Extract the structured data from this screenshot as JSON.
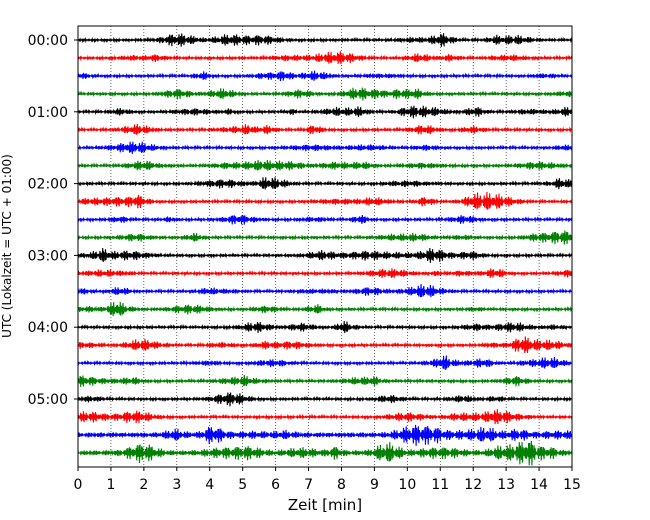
{
  "chart_data": {
    "type": "line",
    "subtype": "helicorder",
    "xlabel": "Zeit  [min]",
    "ylabel": "UTC (Lokalzeit = UTC + 01:00)",
    "xlim": [
      0,
      15
    ],
    "x_ticks": [
      0,
      1,
      2,
      3,
      4,
      5,
      6,
      7,
      8,
      9,
      10,
      11,
      12,
      13,
      14,
      15
    ],
    "x_tick_labels": [
      "0",
      "1",
      "2",
      "3",
      "4",
      "5",
      "6",
      "7",
      "8",
      "9",
      "10",
      "11",
      "12",
      "13",
      "14",
      "15"
    ],
    "y_tick_labels": [
      {
        "row": 0,
        "label": "00:00"
      },
      {
        "row": 4,
        "label": "01:00"
      },
      {
        "row": 8,
        "label": "02:00"
      },
      {
        "row": 12,
        "label": "03:00"
      },
      {
        "row": 16,
        "label": "04:00"
      },
      {
        "row": 20,
        "label": "05:00"
      }
    ],
    "grid": "vertical dotted at each minute",
    "trace_count": 24,
    "trace_interval_minutes": 15,
    "trace_colors": [
      "#000000",
      "#ff0000",
      "#0000ff",
      "#008000"
    ]
  }
}
